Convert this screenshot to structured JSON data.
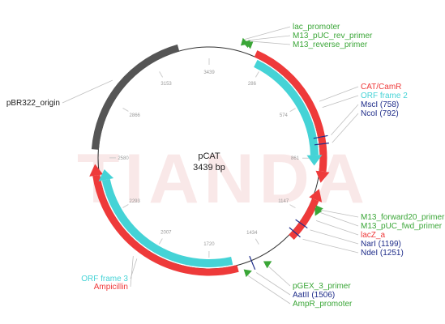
{
  "plasmid": {
    "name": "pCAT",
    "size_label": "3439 bp",
    "total_bp": 3439,
    "watermark": "TIANDA"
  },
  "colors": {
    "backbone": "#333333",
    "red": "#ee3a3a",
    "cyan": "#45d3d6",
    "gray": "#555555",
    "green": "#3aa637",
    "navy": "#1f2d8a",
    "leader": "#bfbfbf"
  },
  "ticks": [
    "286",
    "574",
    "861",
    "1147",
    "1434",
    "1720",
    "2007",
    "2293",
    "2580",
    "2866",
    "3153",
    "3439"
  ],
  "features": [
    {
      "name": "pBR322_origin",
      "label": "pBR322_origin",
      "start": 2620,
      "end": 3290,
      "track": "outer",
      "color": "gray",
      "arrow": "none"
    },
    {
      "name": "CAT/CamR",
      "label": "CAT/CamR",
      "start": 230,
      "end": 980,
      "track": "outer",
      "color": "red",
      "arrow": "end"
    },
    {
      "name": "ORF frame 2",
      "label": "ORF frame 2",
      "start": 250,
      "end": 900,
      "track": "inner",
      "color": "cyan",
      "arrow": "end"
    },
    {
      "name": "lacZ_a",
      "label": "lacZ_a",
      "start": 1010,
      "end": 1280,
      "track": "outer",
      "color": "red",
      "arrow": "start"
    },
    {
      "name": "Ampicillin",
      "label": "Ampicillin",
      "start": 1580,
      "end": 2550,
      "track": "outer",
      "color": "red",
      "arrow": "end"
    },
    {
      "name": "ORF frame 3",
      "label": "ORF frame 3",
      "start": 1600,
      "end": 2520,
      "track": "inner",
      "color": "cyan",
      "arrow": "end"
    }
  ],
  "primers": [
    {
      "name": "lac_promoter",
      "pos": 160,
      "dir": "cw"
    },
    {
      "name": "M13_pUC_rev_primer",
      "pos": 175,
      "dir": "ccw"
    },
    {
      "name": "M13_reverse_primer",
      "pos": 188,
      "dir": "ccw"
    },
    {
      "name": "M13_forward20_primer",
      "pos": 1098,
      "dir": "cw"
    },
    {
      "name": "M13_pUC_fwd_primer",
      "pos": 1110,
      "dir": "cw"
    },
    {
      "name": "pGEX_3_primer",
      "pos": 1445,
      "dir": "ccw"
    },
    {
      "name": "AmpR_promoter",
      "pos": 1545,
      "dir": "ccw"
    }
  ],
  "sites": [
    {
      "name": "MscI (758)",
      "pos": 758
    },
    {
      "name": "NcoI (792)",
      "pos": 792
    },
    {
      "name": "NarI (1199)",
      "pos": 1199
    },
    {
      "name": "NdeI (1251)",
      "pos": 1251
    },
    {
      "name": "AatII (1506)",
      "pos": 1506
    }
  ],
  "label_groups": [
    {
      "group": "top-right",
      "items": [
        {
          "text": "lac_promoter",
          "color": "green",
          "pos": 160
        },
        {
          "text": "M13_pUC_rev_primer",
          "color": "green",
          "pos": 175
        },
        {
          "text": "M13_reverse_primer",
          "color": "green",
          "pos": 188
        }
      ]
    },
    {
      "group": "right-upper",
      "items": [
        {
          "text": "CAT/CamR",
          "color": "red",
          "pos": 600
        },
        {
          "text": "ORF frame 2",
          "color": "cyan",
          "pos": 630
        },
        {
          "text": "MscI (758)",
          "color": "navy",
          "pos": 758
        },
        {
          "text": "NcoI (792)",
          "color": "navy",
          "pos": 792
        }
      ]
    },
    {
      "group": "right-lower",
      "items": [
        {
          "text": "M13_forward20_primer",
          "color": "green",
          "pos": 1098
        },
        {
          "text": "M13_pUC_fwd_primer",
          "color": "green",
          "pos": 1110
        },
        {
          "text": "lacZ_a",
          "color": "red",
          "pos": 1150
        },
        {
          "text": "NarI (1199)",
          "color": "navy",
          "pos": 1199
        },
        {
          "text": "NdeI (1251)",
          "color": "navy",
          "pos": 1251
        }
      ]
    },
    {
      "group": "bottom",
      "items": [
        {
          "text": "pGEX_3_primer",
          "color": "green",
          "pos": 1445
        },
        {
          "text": "AatII (1506)",
          "color": "navy",
          "pos": 1506
        },
        {
          "text": "AmpR_promoter",
          "color": "green",
          "pos": 1545
        }
      ]
    },
    {
      "group": "bottom-left",
      "items": [
        {
          "text": "ORF frame 3",
          "color": "cyan",
          "pos": 2060
        },
        {
          "text": "Ampicillin",
          "color": "red",
          "pos": 2080
        }
      ]
    },
    {
      "group": "left",
      "items": [
        {
          "text": "pBR322_origin",
          "color": "black",
          "pos": 2950
        }
      ]
    }
  ]
}
